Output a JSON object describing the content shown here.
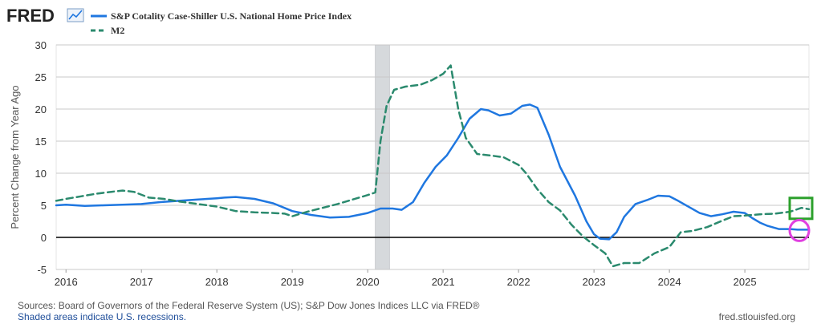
{
  "header": {
    "logo_text": "FRED",
    "logo_icon": "trend-chart-icon"
  },
  "colors": {
    "series_1": "#1f77e0",
    "series_2": "#2b8a6e",
    "recession_shade": "#d6d9dc",
    "zero_line": "#000000",
    "grid": "#c8c8c8",
    "highlight_green": "#2ca02c",
    "highlight_magenta": "#e040e0"
  },
  "chart_data": {
    "type": "line",
    "ylabel": "Percent Change from Year Ago",
    "xlabel": "",
    "ylim": [
      -5,
      30
    ],
    "xlim": [
      2015.87,
      2025.85
    ],
    "yticks": [
      "-5",
      "0",
      "5",
      "10",
      "15",
      "20",
      "25",
      "30"
    ],
    "xticks": [
      "2016",
      "2017",
      "2018",
      "2019",
      "2020",
      "2021",
      "2022",
      "2023",
      "2024",
      "2025"
    ],
    "grid": true,
    "legend_position": "top-left",
    "recessions": [
      {
        "start": 2020.1,
        "end": 2020.29
      }
    ],
    "series": [
      {
        "name": "S&P Cotality Case-Shiller U.S. National Home Price Index",
        "style": "solid",
        "x": [
          2015.87,
          2016.0,
          2016.25,
          2016.5,
          2016.75,
          2017.0,
          2017.25,
          2017.5,
          2017.75,
          2018.0,
          2018.1,
          2018.25,
          2018.5,
          2018.75,
          2019.0,
          2019.25,
          2019.5,
          2019.75,
          2020.0,
          2020.17,
          2020.33,
          2020.45,
          2020.6,
          2020.75,
          2020.9,
          2021.05,
          2021.2,
          2021.35,
          2021.5,
          2021.6,
          2021.75,
          2021.9,
          2022.05,
          2022.15,
          2022.25,
          2022.4,
          2022.55,
          2022.75,
          2022.9,
          2023.0,
          2023.08,
          2023.2,
          2023.3,
          2023.4,
          2023.55,
          2023.7,
          2023.85,
          2024.0,
          2024.1,
          2024.25,
          2024.4,
          2024.55,
          2024.7,
          2024.85,
          2025.0,
          2025.1,
          2025.2,
          2025.3,
          2025.45,
          2025.6,
          2025.7,
          2025.85
        ],
        "values": [
          5.0,
          5.1,
          4.9,
          5.0,
          5.1,
          5.2,
          5.5,
          5.7,
          5.9,
          6.1,
          6.2,
          6.3,
          6.0,
          5.3,
          4.1,
          3.5,
          3.1,
          3.2,
          3.8,
          4.5,
          4.5,
          4.3,
          5.5,
          8.5,
          11.0,
          12.8,
          15.5,
          18.5,
          20.0,
          19.8,
          19.0,
          19.3,
          20.5,
          20.7,
          20.2,
          16.0,
          11.0,
          6.5,
          2.5,
          0.5,
          -0.2,
          -0.3,
          0.8,
          3.2,
          5.2,
          5.8,
          6.5,
          6.4,
          5.8,
          4.8,
          3.8,
          3.3,
          3.6,
          4.0,
          3.8,
          3.0,
          2.3,
          1.8,
          1.3,
          1.3,
          1.2,
          1.2
        ]
      },
      {
        "name": "M2",
        "style": "dashed",
        "x": [
          2015.87,
          2016.0,
          2016.2,
          2016.4,
          2016.6,
          2016.75,
          2016.9,
          2017.1,
          2017.3,
          2017.5,
          2017.75,
          2018.0,
          2018.25,
          2018.5,
          2018.75,
          2018.9,
          2019.0,
          2019.2,
          2019.4,
          2019.6,
          2019.8,
          2020.0,
          2020.1,
          2020.17,
          2020.25,
          2020.35,
          2020.5,
          2020.7,
          2020.85,
          2021.0,
          2021.1,
          2021.2,
          2021.3,
          2021.45,
          2021.6,
          2021.8,
          2022.0,
          2022.1,
          2022.25,
          2022.4,
          2022.55,
          2022.7,
          2022.85,
          2023.0,
          2023.15,
          2023.25,
          2023.4,
          2023.6,
          2023.8,
          2024.0,
          2024.15,
          2024.3,
          2024.5,
          2024.7,
          2024.85,
          2025.0,
          2025.2,
          2025.4,
          2025.6,
          2025.75,
          2025.85
        ],
        "values": [
          5.7,
          6.0,
          6.4,
          6.8,
          7.1,
          7.3,
          7.1,
          6.2,
          6.0,
          5.6,
          5.2,
          4.8,
          4.1,
          3.9,
          3.8,
          3.7,
          3.3,
          4.0,
          4.6,
          5.2,
          5.9,
          6.6,
          7.0,
          15.0,
          20.5,
          23.0,
          23.5,
          23.8,
          24.5,
          25.5,
          26.8,
          20.0,
          15.5,
          13.0,
          12.8,
          12.5,
          11.3,
          10.0,
          7.5,
          5.5,
          4.2,
          2.0,
          0.2,
          -1.2,
          -2.5,
          -4.5,
          -4.0,
          -4.0,
          -2.5,
          -1.5,
          0.8,
          1.0,
          1.6,
          2.6,
          3.3,
          3.4,
          3.6,
          3.7,
          4.0,
          4.6,
          4.4
        ]
      }
    ]
  },
  "footer": {
    "sources": "Sources: Board of Governors of the Federal Reserve System (US); S&P Dow Jones Indices LLC via FRED®",
    "recession_note": "Shaded areas indicate U.S. recessions.",
    "site": "fred.stlouisfed.org"
  }
}
